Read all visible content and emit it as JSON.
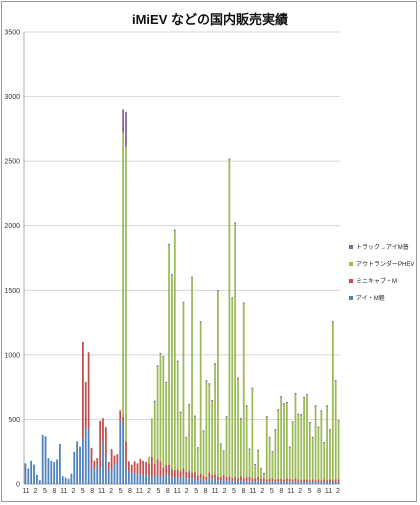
{
  "title": "iMiEV などの国内販売実績",
  "chart_data": {
    "type": "bar",
    "stacked": true,
    "title": "iMiEV などの国内販売実績",
    "ylim": [
      0,
      3500
    ],
    "yticks": [
      0,
      500,
      1000,
      1500,
      2000,
      2500,
      3000,
      3500
    ],
    "grid": true,
    "legend_position": "right",
    "x_tick_labels": [
      "11",
      "2",
      "5",
      "8",
      "11",
      "2",
      "5",
      "8",
      "11",
      "2",
      "5",
      "8",
      "11",
      "2",
      "5",
      "8",
      "11",
      "2",
      "5",
      "8",
      "11",
      "2",
      "5",
      "8",
      "11",
      "2",
      "5",
      "8",
      "11",
      "2",
      "5",
      "8",
      "11",
      "2"
    ],
    "series": [
      {
        "name": "アイ・M軽",
        "color": "#4f81bd",
        "values": [
          160,
          120,
          180,
          150,
          70,
          30,
          380,
          370,
          200,
          180,
          170,
          190,
          310,
          60,
          50,
          40,
          80,
          250,
          330,
          290,
          350,
          440,
          420,
          130,
          110,
          150,
          120,
          330,
          220,
          110,
          100,
          150,
          170,
          500,
          460,
          130,
          95,
          80,
          85,
          80,
          75,
          70,
          80,
          60,
          60,
          55,
          70,
          65,
          50,
          80,
          60,
          55,
          50,
          45,
          50,
          60,
          45,
          40,
          45,
          40,
          30,
          40,
          35,
          25,
          50,
          40,
          40,
          30,
          25,
          35,
          25,
          30,
          20,
          25,
          20,
          30,
          20,
          20,
          25,
          20,
          20,
          25,
          20,
          20,
          15,
          20,
          20,
          15,
          15,
          20,
          15,
          20,
          20,
          15,
          20,
          15,
          15,
          15,
          15,
          15,
          15,
          15,
          15,
          15,
          15,
          15,
          15,
          15,
          15,
          15
        ]
      },
      {
        "name": "ミニキャブ・M",
        "color": "#c0504d",
        "values": [
          0,
          0,
          0,
          0,
          0,
          0,
          0,
          0,
          0,
          0,
          0,
          0,
          0,
          0,
          0,
          0,
          0,
          0,
          0,
          0,
          750,
          350,
          600,
          150,
          70,
          50,
          370,
          180,
          220,
          60,
          170,
          70,
          60,
          70,
          60,
          200,
          80,
          70,
          90,
          80,
          120,
          110,
          90,
          100,
          150,
          100,
          120,
          110,
          80,
          70,
          90,
          60,
          60,
          70,
          50,
          60,
          50,
          60,
          40,
          50,
          35,
          40,
          30,
          30,
          40,
          30,
          35,
          30,
          30,
          35,
          30,
          30,
          25,
          30,
          25,
          30,
          25,
          30,
          30,
          25,
          25,
          30,
          25,
          25,
          20,
          25,
          25,
          20,
          25,
          20,
          20,
          25,
          20,
          20,
          25,
          20,
          15,
          20,
          20,
          15,
          20,
          15,
          20,
          15,
          20,
          15,
          20,
          15,
          20,
          20
        ]
      },
      {
        "name": "アウトランダーPHEV",
        "color": "#9bbb59",
        "values": [
          0,
          0,
          0,
          0,
          0,
          0,
          0,
          0,
          0,
          0,
          0,
          0,
          0,
          0,
          0,
          0,
          0,
          0,
          0,
          0,
          0,
          0,
          0,
          0,
          0,
          0,
          0,
          0,
          0,
          0,
          0,
          0,
          0,
          0,
          2200,
          2280,
          0,
          0,
          0,
          0,
          0,
          0,
          0,
          50,
          300,
          480,
          720,
          830,
          850,
          630,
          1700,
          1500,
          1850,
          830,
          450,
          1280,
          260,
          510,
          1510,
          430,
          210,
          1170,
          340,
          740,
          680,
          570,
          850,
          1430,
          250,
          180,
          460,
          2450,
          1390,
          1960,
          770,
          440,
          1350,
          550,
          210,
          690,
          100,
          200,
          70,
          30,
          480,
          310,
          200,
          380,
          530,
          630,
          580,
          580,
          240,
          440,
          650,
          500,
          500,
          630,
          650,
          440,
          320,
          570,
          400,
          530,
          280,
          570,
          380,
          1220,
          760,
          450,
          660,
          470,
          550,
          450
        ]
      },
      {
        "name": "トラック→アイM普",
        "color": "#8064a2",
        "values": [
          0,
          0,
          0,
          0,
          0,
          0,
          0,
          0,
          0,
          0,
          0,
          0,
          0,
          0,
          0,
          0,
          0,
          0,
          0,
          0,
          0,
          0,
          0,
          0,
          0,
          0,
          0,
          0,
          0,
          0,
          0,
          0,
          0,
          0,
          180,
          270,
          0,
          0,
          0,
          0,
          0,
          0,
          0,
          0,
          0,
          10,
          10,
          10,
          10,
          10,
          10,
          10,
          10,
          10,
          10,
          10,
          10,
          10,
          10,
          10,
          10,
          10,
          10,
          10,
          10,
          10,
          10,
          10,
          10,
          10,
          10,
          10,
          10,
          10,
          10,
          10,
          10,
          10,
          10,
          10,
          10,
          10,
          10,
          10,
          10,
          10,
          10,
          10,
          10,
          10,
          10,
          10,
          10,
          10,
          10,
          10,
          10,
          10,
          10,
          10,
          10,
          10,
          10,
          10,
          10,
          10,
          10,
          10,
          10,
          10
        ]
      }
    ]
  }
}
